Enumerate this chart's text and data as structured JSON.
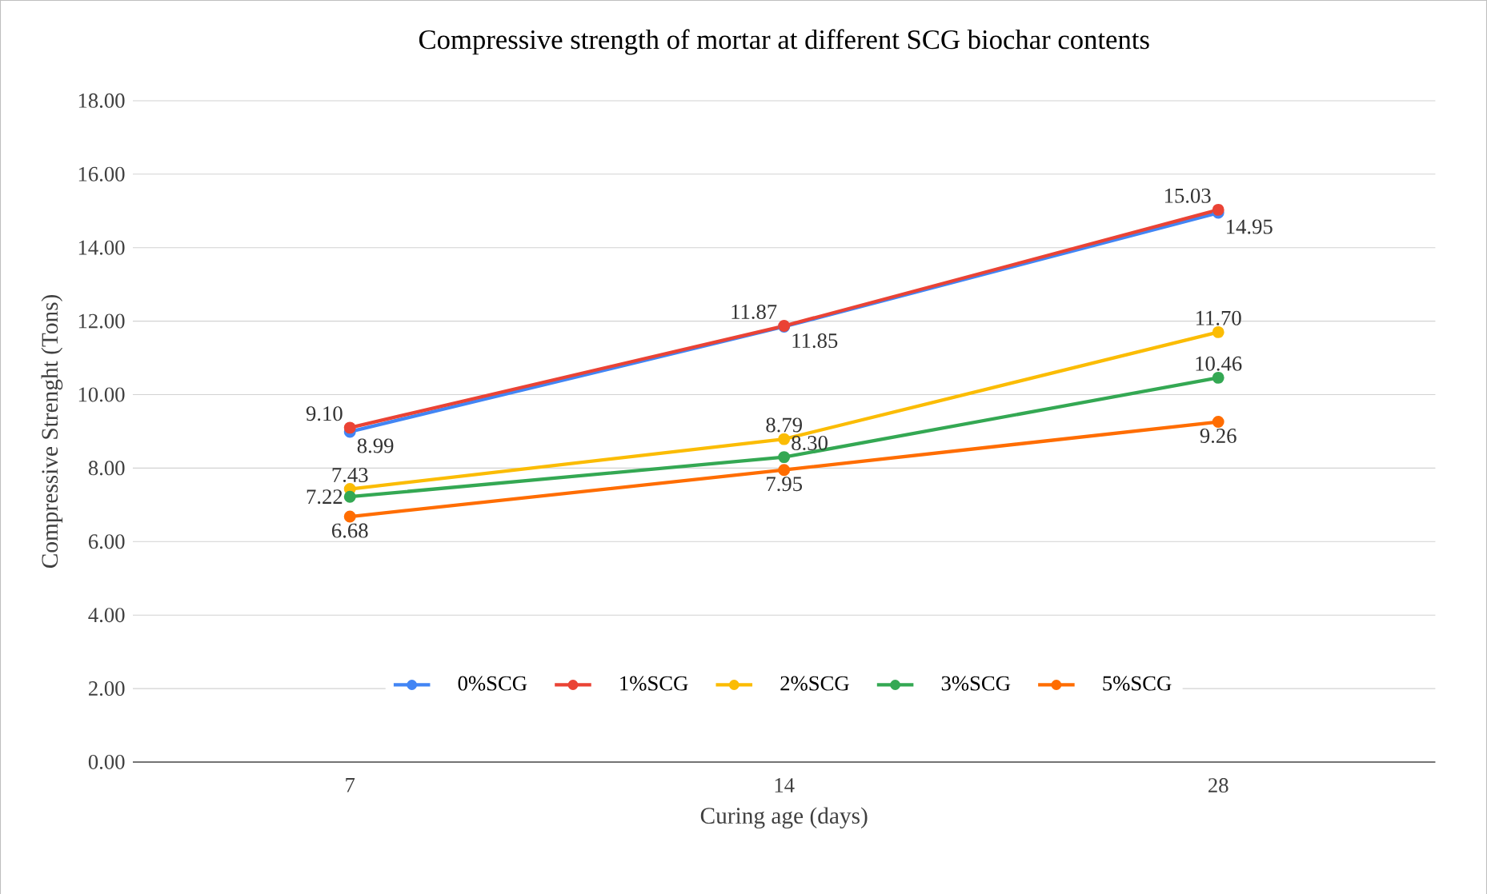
{
  "chart_data": {
    "type": "line",
    "title": "Compressive strength of mortar at different SCG biochar contents",
    "xlabel": "Curing age (days)",
    "ylabel": "Compressive Strenght (Tons)",
    "categories": [
      "7",
      "14",
      "28"
    ],
    "series": [
      {
        "name": "0%SCG",
        "color": "#4285f4",
        "values": [
          8.99,
          11.85,
          14.95
        ],
        "value_labels": [
          "8.99",
          "11.85",
          "14.95"
        ]
      },
      {
        "name": "1%SCG",
        "color": "#ea4335",
        "values": [
          9.1,
          11.87,
          15.03
        ],
        "value_labels": [
          "9.10",
          "11.87",
          "15.03"
        ]
      },
      {
        "name": "2%SCG",
        "color": "#fbbc04",
        "values": [
          7.43,
          8.79,
          11.7
        ],
        "value_labels": [
          "7.43",
          "8.79",
          "11.70"
        ]
      },
      {
        "name": "3%SCG",
        "color": "#34a853",
        "values": [
          7.22,
          8.3,
          10.46
        ],
        "value_labels": [
          "7.22",
          "8.30",
          "10.46"
        ]
      },
      {
        "name": "5%SCG",
        "color": "#ff6d01",
        "values": [
          6.68,
          7.95,
          9.26
        ],
        "value_labels": [
          "6.68",
          "7.95",
          "9.26"
        ]
      }
    ],
    "ylim": [
      0,
      18
    ],
    "yticks": [
      {
        "value": 0,
        "label": "0.00"
      },
      {
        "value": 2,
        "label": "2.00"
      },
      {
        "value": 4,
        "label": "4.00"
      },
      {
        "value": 6,
        "label": "6.00"
      },
      {
        "value": 8,
        "label": "8.00"
      },
      {
        "value": 10,
        "label": "10.00"
      },
      {
        "value": 12,
        "label": "12.00"
      },
      {
        "value": 14,
        "label": "14.00"
      },
      {
        "value": 16,
        "label": "16.00"
      },
      {
        "value": 18,
        "label": "18.00"
      }
    ],
    "grid": "y",
    "legend": "bottom",
    "marker": "circle",
    "line_style": "solid"
  }
}
